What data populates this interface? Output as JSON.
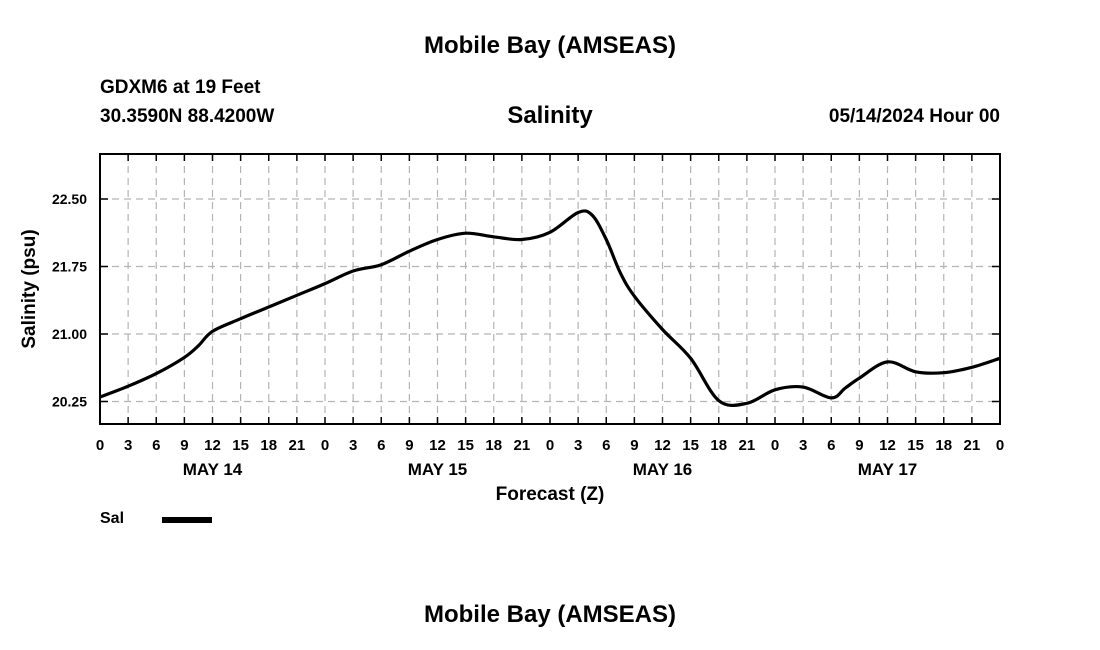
{
  "header": {
    "title": "Mobile Bay (AMSEAS)",
    "station": "GDXM6 at 19 Feet",
    "coords": "30.3590N  88.4200W",
    "variable": "Salinity",
    "datetime": "05/14/2024 Hour 00"
  },
  "footer": {
    "title": "Mobile Bay (AMSEAS)"
  },
  "legend": {
    "label": "Sal",
    "color": "#000000"
  },
  "chart_data": {
    "type": "line",
    "xlabel": "Forecast (Z)",
    "ylabel": "Salinity (psu)",
    "x_unit": "hours since 05/14/2024 00Z",
    "xlim": [
      0,
      96
    ],
    "ylim": [
      20.0,
      23.0
    ],
    "y_ticks": [
      "20.25",
      "21.00",
      "21.75",
      "22.50"
    ],
    "y_tick_values": [
      20.25,
      21.0,
      21.75,
      22.5
    ],
    "x_tick_labels": [
      "0",
      "3",
      "6",
      "9",
      "12",
      "15",
      "18",
      "21",
      "0",
      "3",
      "6",
      "9",
      "12",
      "15",
      "18",
      "21",
      "0",
      "3",
      "6",
      "9",
      "12",
      "15",
      "18",
      "21",
      "0",
      "3",
      "6",
      "9",
      "12",
      "15",
      "18",
      "21",
      "0"
    ],
    "day_labels": [
      {
        "text": "MAY 14",
        "hour": 12
      },
      {
        "text": "MAY 15",
        "hour": 36
      },
      {
        "text": "MAY 16",
        "hour": 60
      },
      {
        "text": "MAY 17",
        "hour": 84
      }
    ],
    "grid": true,
    "series": [
      {
        "name": "Sal",
        "x": [
          0,
          3,
          6,
          9,
          10.5,
          12,
          15,
          18,
          21,
          24,
          27,
          30,
          33,
          36,
          39,
          42,
          45,
          48,
          51,
          52.5,
          54,
          55.5,
          57,
          60,
          63,
          66,
          69,
          72,
          75,
          78,
          79.5,
          81,
          84,
          87,
          90,
          93,
          96
        ],
        "y": [
          20.3,
          20.42,
          20.56,
          20.74,
          20.87,
          21.03,
          21.17,
          21.3,
          21.43,
          21.56,
          21.7,
          21.77,
          21.92,
          22.05,
          22.12,
          22.08,
          22.05,
          22.13,
          22.35,
          22.32,
          22.05,
          21.68,
          21.42,
          21.05,
          20.73,
          20.26,
          20.23,
          20.38,
          20.41,
          20.29,
          20.4,
          20.51,
          20.69,
          20.58,
          20.57,
          20.63,
          20.73
        ]
      }
    ]
  }
}
